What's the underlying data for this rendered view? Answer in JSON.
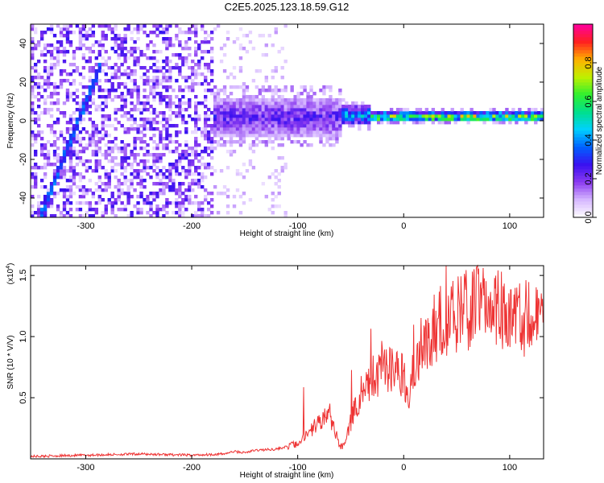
{
  "title": "C2E5.2025.123.18.59.G12",
  "chart_data": [
    {
      "type": "heatmap",
      "xlabel": "Height of straight line (km)",
      "ylabel": "Frequency (Hz)",
      "xlim": [
        -352,
        132
      ],
      "ylim": [
        -50,
        50
      ],
      "xticks": [
        -300,
        -200,
        -100,
        0,
        100
      ],
      "yticks": [
        -40,
        -20,
        0,
        20,
        40
      ],
      "colorbar": {
        "label": "Normalized spectral amplitude",
        "range": [
          0,
          1
        ],
        "ticks": [
          0.0,
          0.2,
          0.4,
          0.6,
          0.8
        ],
        "tick_labels": [
          "0.0",
          "0.2",
          "0.4",
          "0.6",
          "0.8"
        ],
        "colormap": [
          "#ffffff",
          "#d6b8ff",
          "#8c3cf0",
          "#3a10f0",
          "#0060ff",
          "#00d0ff",
          "#00e08c",
          "#30f030",
          "#c0f000",
          "#ffb000",
          "#ff2020",
          "#ff00a0"
        ]
      },
      "features": [
        {
          "x_range": [
            -352,
            -180
          ],
          "freq_range": [
            -50,
            50
          ],
          "amplitude": 0.1
        },
        {
          "x_range": [
            -180,
            -60
          ],
          "freq_center": 2,
          "freq_halfwidth": 10,
          "amplitude": 0.25
        },
        {
          "x_range": [
            -60,
            -30
          ],
          "freq_center": 3,
          "freq_halfwidth": 5,
          "amplitude": 0.45
        },
        {
          "x_range": [
            -30,
            132
          ],
          "freq_center": 2,
          "freq_halfwidth": 2.5,
          "amplitude": 0.75
        },
        {
          "x_range": [
            -342,
            -285
          ],
          "freq_range": [
            -48,
            30
          ],
          "amplitude": 0.3
        }
      ]
    },
    {
      "type": "line",
      "xlabel": "Height of straight line (km)",
      "ylabel": "SNR (10 * V/V)",
      "y_exponent_label": "(x10",
      "y_exponent_power": "4",
      "y_exponent_close": ")",
      "xlim": [
        -352,
        132
      ],
      "ylim": [
        0,
        1.58
      ],
      "xticks": [
        -300,
        -200,
        -100,
        0,
        100
      ],
      "yticks": [
        0.5,
        1.0,
        1.5
      ],
      "ytick_labels": [
        "0.5",
        "1.0",
        "1.5"
      ],
      "color": "#ee3333",
      "x": [
        -352,
        -300,
        -250,
        -200,
        -170,
        -160,
        -150,
        -140,
        -120,
        -100,
        -90,
        -80,
        -70,
        -65,
        -60,
        -55,
        -50,
        -45,
        -40,
        -35,
        -30,
        -25,
        -20,
        -15,
        -10,
        -5,
        0,
        5,
        10,
        20,
        30,
        40,
        50,
        60,
        70,
        80,
        90,
        100,
        110,
        120,
        132
      ],
      "y": [
        0.02,
        0.03,
        0.04,
        0.03,
        0.04,
        0.06,
        0.05,
        0.07,
        0.08,
        0.12,
        0.2,
        0.3,
        0.38,
        0.22,
        0.1,
        0.12,
        0.3,
        0.45,
        0.55,
        0.6,
        0.62,
        0.65,
        0.78,
        0.7,
        0.74,
        0.72,
        0.68,
        0.55,
        0.8,
        0.98,
        1.08,
        1.16,
        1.2,
        1.22,
        1.24,
        1.22,
        1.25,
        1.2,
        1.15,
        1.13,
        1.12
      ]
    }
  ]
}
